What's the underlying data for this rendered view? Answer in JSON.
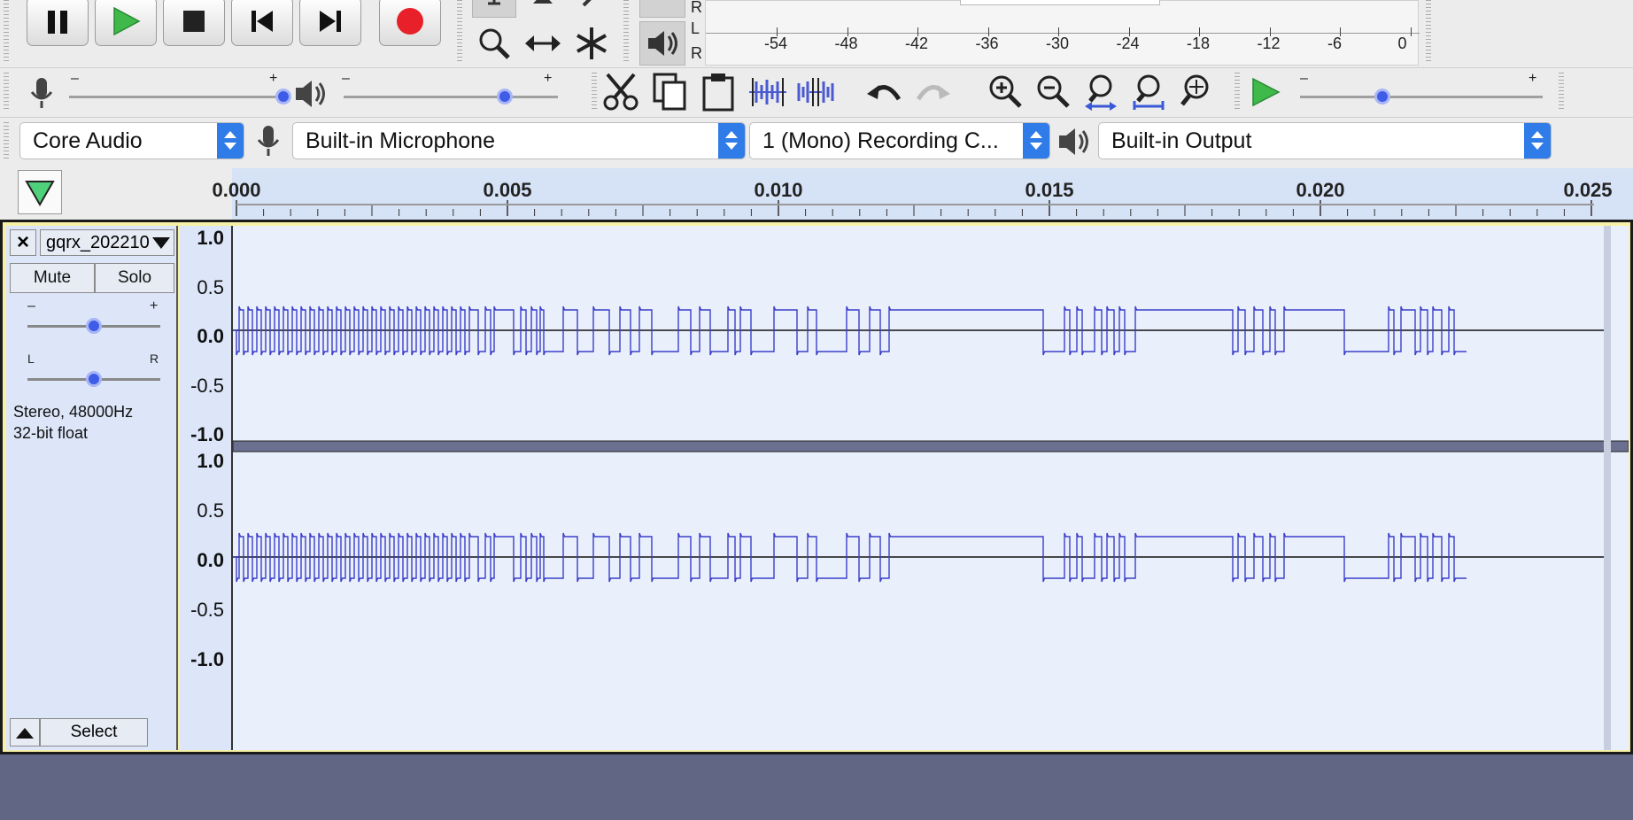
{
  "transport": {
    "pause": "pause-icon",
    "play": "play-icon",
    "stop": "stop-icon",
    "skip_start": "skip-to-start-icon",
    "skip_end": "skip-to-end-icon",
    "record": "record-icon"
  },
  "meter": {
    "left_label": "L",
    "right_label": "R",
    "top_label": "R",
    "scale": [
      "-54",
      "-48",
      "-42",
      "-36",
      "-30",
      "-24",
      "-18",
      "-12",
      "-6",
      "0"
    ]
  },
  "mixer": {
    "minus": "–",
    "plus": "+",
    "input_volume": 1.0,
    "output_volume": 0.75
  },
  "play_at_speed": {
    "minus": "–",
    "plus": "+",
    "speed": 0.34
  },
  "devices": {
    "host": "Core Audio",
    "input": "Built-in Microphone",
    "channels": "1 (Mono) Recording C...",
    "output": "Built-in Output"
  },
  "timeline": {
    "labels": [
      "0.000",
      "0.005",
      "0.010",
      "0.015",
      "0.020",
      "0.025"
    ]
  },
  "track": {
    "name": "gqrx_202210",
    "close": "×",
    "mute": "Mute",
    "solo": "Solo",
    "gain_minus": "–",
    "gain_plus": "+",
    "pan_left": "L",
    "pan_right": "R",
    "format_line1": "Stereo, 48000Hz",
    "format_line2": "32-bit float",
    "select": "Select",
    "gain": 0.5,
    "pan": 0.5
  },
  "vertical_scale": [
    "1.0",
    "0.5",
    "0.0",
    "-0.5",
    "-1.0"
  ],
  "colors": {
    "waveform": "#3a3ec9",
    "selection": "#d6e2f6",
    "background": "#626685",
    "track_border": "#f6f1a6"
  }
}
